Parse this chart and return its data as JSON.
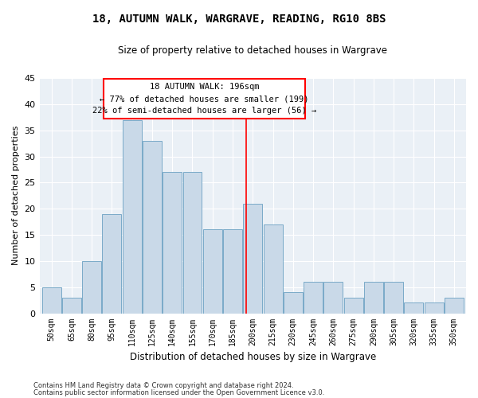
{
  "title": "18, AUTUMN WALK, WARGRAVE, READING, RG10 8BS",
  "subtitle": "Size of property relative to detached houses in Wargrave",
  "xlabel": "Distribution of detached houses by size in Wargrave",
  "ylabel": "Number of detached properties",
  "categories": [
    "50sqm",
    "65sqm",
    "80sqm",
    "95sqm",
    "110sqm",
    "125sqm",
    "140sqm",
    "155sqm",
    "170sqm",
    "185sqm",
    "200sqm",
    "215sqm",
    "230sqm",
    "245sqm",
    "260sqm",
    "275sqm",
    "290sqm",
    "305sqm",
    "320sqm",
    "335sqm",
    "350sqm"
  ],
  "values": [
    5,
    3,
    10,
    19,
    37,
    33,
    27,
    27,
    16,
    16,
    21,
    17,
    4,
    6,
    6,
    3,
    6,
    6,
    2,
    2,
    3
  ],
  "bar_color": "#c9d9e8",
  "bar_edge_color": "#7aaac8",
  "annotation_title": "18 AUTUMN WALK: 196sqm",
  "annotation_line1": "← 77% of detached houses are smaller (199)",
  "annotation_line2": "22% of semi-detached houses are larger (56) →",
  "ylim": [
    0,
    45
  ],
  "yticks": [
    0,
    5,
    10,
    15,
    20,
    25,
    30,
    35,
    40,
    45
  ],
  "bg_color": "#eaf0f6",
  "footer1": "Contains HM Land Registry data © Crown copyright and database right 2024.",
  "footer2": "Contains public sector information licensed under the Open Government Licence v3.0."
}
